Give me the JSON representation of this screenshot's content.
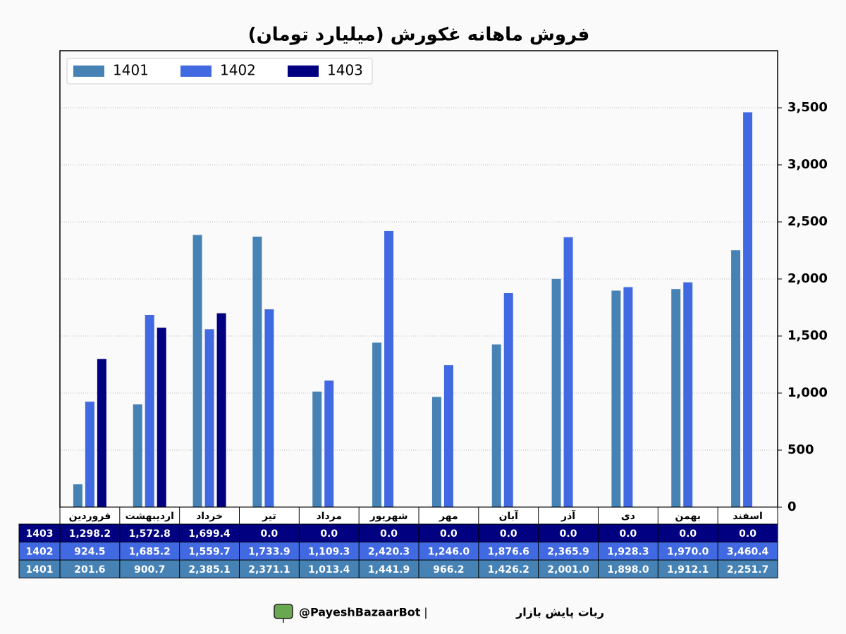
{
  "chart_data": {
    "type": "bar",
    "title": "فروش ماهانه غکورش (میلیارد تومان)",
    "categories": [
      "فروردین",
      "اردیبهشت",
      "خرداد",
      "تیر",
      "مرداد",
      "شهریور",
      "مهر",
      "آبان",
      "آذر",
      "دی",
      "بهمن",
      "اسفند"
    ],
    "series": [
      {
        "name": "1401",
        "color": "#4682b4",
        "values": [
          201.6,
          900.7,
          2385.1,
          2371.1,
          1013.4,
          1441.9,
          966.2,
          1426.2,
          2001.0,
          1898.0,
          1912.1,
          2251.7
        ],
        "value_labels": [
          "201.6",
          "900.7",
          "2,385.1",
          "2,371.1",
          "1,013.4",
          "1,441.9",
          "966.2",
          "1,426.2",
          "2,001.0",
          "1,898.0",
          "1,912.1",
          "2,251.7"
        ]
      },
      {
        "name": "1402",
        "color": "#4169e1",
        "values": [
          924.5,
          1685.2,
          1559.7,
          1733.9,
          1109.3,
          2420.3,
          1246.0,
          1876.6,
          2365.9,
          1928.3,
          1970.0,
          3460.4
        ],
        "value_labels": [
          "924.5",
          "1,685.2",
          "1,559.7",
          "1,733.9",
          "1,109.3",
          "2,420.3",
          "1,246.0",
          "1,876.6",
          "2,365.9",
          "1,928.3",
          "1,970.0",
          "3,460.4"
        ]
      },
      {
        "name": "1403",
        "color": "#000080",
        "values": [
          1298.2,
          1572.8,
          1699.4,
          0,
          0,
          0,
          0,
          0,
          0,
          0,
          0,
          0
        ],
        "value_labels": [
          "1,298.2",
          "1,572.8",
          "1,699.4",
          "0.0",
          "0.0",
          "0.0",
          "0.0",
          "0.0",
          "0.0",
          "0.0",
          "0.0",
          "0.0"
        ]
      }
    ],
    "ylim": [
      0,
      4000
    ],
    "yticks": [
      0,
      500,
      {
        "value": 1000,
        "label": "1,000"
      },
      {
        "value": 1500,
        "label": "1,500"
      },
      {
        "value": 2000,
        "label": "2,000"
      },
      {
        "value": 2500,
        "label": "2,500"
      },
      {
        "value": 3000,
        "label": "3,000"
      },
      {
        "value": 3500,
        "label": "3,500"
      }
    ],
    "grid": true,
    "legend": "upper left"
  },
  "footer": {
    "brand": "ربات پایش بازار",
    "separator": "|",
    "handle": "@PayeshBazaarBot"
  }
}
